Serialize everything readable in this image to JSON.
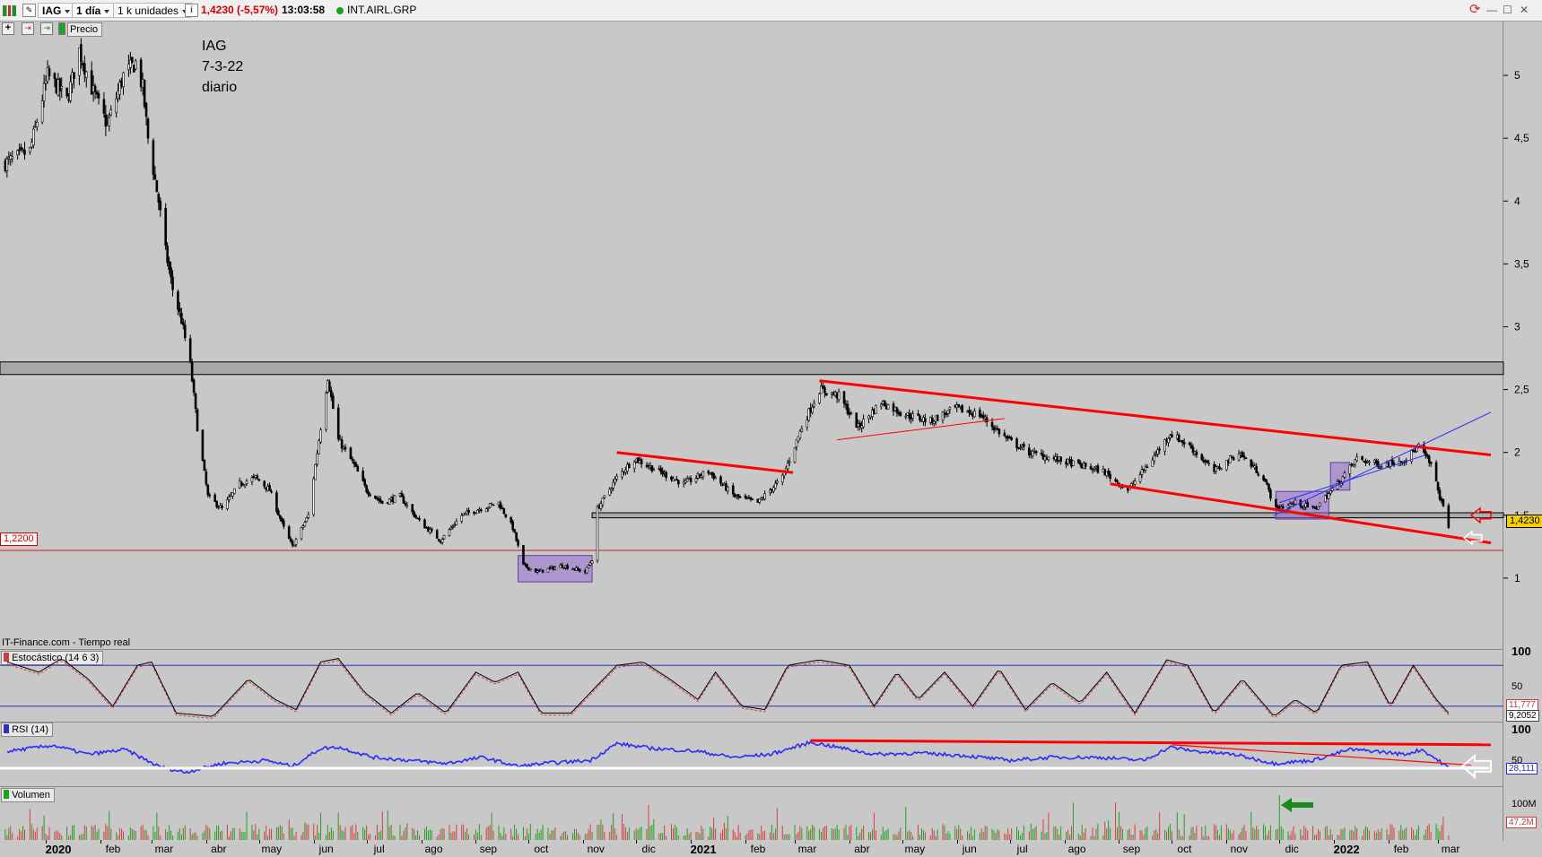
{
  "toolbar": {
    "symbol": "IAG",
    "timeframe": "1 día",
    "units": "1 k unidades",
    "price_change": "1,4230 (-5,57%)",
    "time": "13:03:58",
    "instrument": "INT.AIRL.GRP",
    "price_tab": "Precio",
    "info_icon": "info-icon",
    "refresh_icon": "refresh-icon"
  },
  "window": {
    "minimize": "—",
    "restore": "☐",
    "close": "✕"
  },
  "colors": {
    "background": "#c8c8c8",
    "trendline": "#ff0000",
    "support": "#e02020",
    "stoch": "#000000",
    "rsi": "#2b2bff",
    "volume": "#00a000"
  },
  "chart_data": [
    {
      "type": "candlestick",
      "annotation": [
        "IAG",
        "7-3-22",
        "diario"
      ],
      "source": "IT-Finance.com - Tiempo real",
      "y_ticks": [
        "5",
        "4,5",
        "4",
        "3,5",
        "3",
        "2,5",
        "2",
        "1,5",
        "1"
      ],
      "y_tick_values": [
        5,
        4.5,
        4,
        3.5,
        3,
        2.5,
        2,
        1.5,
        1
      ],
      "ylim": [
        0.55,
        5.4
      ],
      "last_price": "1,4230",
      "support_label": "1,2200",
      "support_value": 1.22,
      "x_ticks": [
        "2020",
        "feb",
        "mar",
        "abr",
        "may",
        "jun",
        "jul",
        "ago",
        "sep",
        "oct",
        "nov",
        "dic",
        "2021",
        "feb",
        "mar",
        "abr",
        "may",
        "jun",
        "jul",
        "ago",
        "sep",
        "oct",
        "nov",
        "dic",
        "2022",
        "feb",
        "mar"
      ],
      "x_tick_bold": [
        true,
        false,
        false,
        false,
        false,
        false,
        false,
        false,
        false,
        false,
        false,
        false,
        true,
        false,
        false,
        false,
        false,
        false,
        false,
        false,
        false,
        false,
        false,
        false,
        true,
        false,
        false
      ],
      "x_range": [
        "2019-12-06",
        "2022-03-31"
      ],
      "series": [
        {
          "points": [
            [
              "2019-12-09",
              4.3
            ],
            [
              "2019-12-23",
              4.4
            ],
            [
              "2020-01-02",
              5.0
            ],
            [
              "2020-01-08",
              4.9
            ],
            [
              "2020-01-13",
              4.8
            ],
            [
              "2020-01-20",
              5.2
            ],
            [
              "2020-01-27",
              4.9
            ],
            [
              "2020-02-05",
              4.6
            ],
            [
              "2020-02-14",
              5.0
            ],
            [
              "2020-02-21",
              5.1
            ],
            [
              "2020-02-25",
              4.9
            ],
            [
              "2020-02-28",
              4.5
            ],
            [
              "2020-03-05",
              4.0
            ],
            [
              "2020-03-09",
              3.6
            ],
            [
              "2020-03-13",
              3.3
            ],
            [
              "2020-03-18",
              3.05
            ],
            [
              "2020-03-23",
              2.7
            ],
            [
              "2020-03-27",
              2.2
            ],
            [
              "2020-04-02",
              1.65
            ],
            [
              "2020-04-10",
              1.55
            ],
            [
              "2020-04-20",
              1.75
            ],
            [
              "2020-04-29",
              1.8
            ],
            [
              "2020-05-07",
              1.7
            ],
            [
              "2020-05-15",
              1.4
            ],
            [
              "2020-05-20",
              1.25
            ],
            [
              "2020-05-29",
              1.5
            ],
            [
              "2020-06-05",
              2.2
            ],
            [
              "2020-06-09",
              2.6
            ],
            [
              "2020-06-15",
              2.1
            ],
            [
              "2020-06-24",
              1.9
            ],
            [
              "2020-07-01",
              1.7
            ],
            [
              "2020-07-10",
              1.6
            ],
            [
              "2020-07-20",
              1.65
            ],
            [
              "2020-07-31",
              1.45
            ],
            [
              "2020-08-12",
              1.3
            ],
            [
              "2020-08-24",
              1.5
            ],
            [
              "2020-09-03",
              1.55
            ],
            [
              "2020-09-14",
              1.6
            ],
            [
              "2020-09-22",
              1.4
            ],
            [
              "2020-09-28",
              1.1
            ],
            [
              "2020-10-06",
              1.05
            ],
            [
              "2020-10-20",
              1.1
            ],
            [
              "2020-11-02",
              1.05
            ],
            [
              "2020-11-06",
              1.15
            ],
            [
              "2020-11-09",
              1.55
            ],
            [
              "2020-11-20",
              1.8
            ],
            [
              "2020-11-30",
              1.95
            ],
            [
              "2020-12-14",
              1.85
            ],
            [
              "2020-12-28",
              1.75
            ],
            [
              "2021-01-11",
              1.85
            ],
            [
              "2021-01-26",
              1.65
            ],
            [
              "2021-02-08",
              1.6
            ],
            [
              "2021-02-22",
              1.8
            ],
            [
              "2021-03-05",
              2.2
            ],
            [
              "2021-03-15",
              2.5
            ],
            [
              "2021-03-26",
              2.45
            ],
            [
              "2021-04-06",
              2.2
            ],
            [
              "2021-04-19",
              2.4
            ],
            [
              "2021-05-03",
              2.3
            ],
            [
              "2021-05-17",
              2.25
            ],
            [
              "2021-05-31",
              2.35
            ],
            [
              "2021-06-14",
              2.3
            ],
            [
              "2021-06-30",
              2.1
            ],
            [
              "2021-07-12",
              2.0
            ],
            [
              "2021-07-26",
              1.95
            ],
            [
              "2021-08-09",
              1.9
            ],
            [
              "2021-08-23",
              1.85
            ],
            [
              "2021-09-06",
              1.7
            ],
            [
              "2021-09-20",
              1.95
            ],
            [
              "2021-09-30",
              2.15
            ],
            [
              "2021-10-11",
              2.05
            ],
            [
              "2021-10-25",
              1.85
            ],
            [
              "2021-11-08",
              2.0
            ],
            [
              "2021-11-22",
              1.8
            ],
            [
              "2021-11-29",
              1.55
            ],
            [
              "2021-12-10",
              1.6
            ],
            [
              "2021-12-21",
              1.55
            ],
            [
              "2022-01-03",
              1.75
            ],
            [
              "2022-01-14",
              1.95
            ],
            [
              "2022-01-28",
              1.9
            ],
            [
              "2022-02-11",
              1.95
            ],
            [
              "2022-02-18",
              2.05
            ],
            [
              "2022-02-25",
              1.9
            ],
            [
              "2022-03-02",
              1.65
            ],
            [
              "2022-03-07",
              1.42
            ]
          ]
        }
      ]
    },
    {
      "type": "line",
      "title": "Estocástico (14 6 3)",
      "y_ticks": [
        "100",
        "50"
      ],
      "y_tick_values": [
        100,
        50
      ],
      "ylim": [
        0,
        100
      ],
      "levels": [
        80,
        20
      ],
      "last_values": [
        "11,777",
        "9,2052"
      ],
      "series": [
        {
          "points": [
            [
              "2019-12-10",
              85
            ],
            [
              "2019-12-28",
              70
            ],
            [
              "2020-01-10",
              90
            ],
            [
              "2020-01-25",
              60
            ],
            [
              "2020-02-08",
              20
            ],
            [
              "2020-02-22",
              80
            ],
            [
              "2020-03-01",
              85
            ],
            [
              "2020-03-15",
              10
            ],
            [
              "2020-04-05",
              5
            ],
            [
              "2020-04-25",
              60
            ],
            [
              "2020-05-10",
              30
            ],
            [
              "2020-05-22",
              15
            ],
            [
              "2020-06-05",
              85
            ],
            [
              "2020-06-15",
              90
            ],
            [
              "2020-06-30",
              40
            ],
            [
              "2020-07-15",
              10
            ],
            [
              "2020-07-30",
              40
            ],
            [
              "2020-08-15",
              10
            ],
            [
              "2020-09-01",
              70
            ],
            [
              "2020-09-12",
              55
            ],
            [
              "2020-09-25",
              70
            ],
            [
              "2020-10-08",
              10
            ],
            [
              "2020-10-25",
              10
            ],
            [
              "2020-11-05",
              40
            ],
            [
              "2020-11-20",
              80
            ],
            [
              "2020-12-05",
              85
            ],
            [
              "2020-12-20",
              60
            ],
            [
              "2021-01-05",
              30
            ],
            [
              "2021-01-15",
              70
            ],
            [
              "2021-01-30",
              20
            ],
            [
              "2021-02-12",
              15
            ],
            [
              "2021-02-25",
              80
            ],
            [
              "2021-03-15",
              88
            ],
            [
              "2021-04-01",
              80
            ],
            [
              "2021-04-15",
              20
            ],
            [
              "2021-04-28",
              70
            ],
            [
              "2021-05-10",
              30
            ],
            [
              "2021-05-25",
              70
            ],
            [
              "2021-06-10",
              20
            ],
            [
              "2021-06-25",
              75
            ],
            [
              "2021-07-10",
              15
            ],
            [
              "2021-07-25",
              55
            ],
            [
              "2021-08-10",
              25
            ],
            [
              "2021-08-25",
              70
            ],
            [
              "2021-09-10",
              10
            ],
            [
              "2021-09-28",
              88
            ],
            [
              "2021-10-10",
              80
            ],
            [
              "2021-10-25",
              10
            ],
            [
              "2021-11-10",
              60
            ],
            [
              "2021-11-28",
              5
            ],
            [
              "2021-12-10",
              30
            ],
            [
              "2021-12-22",
              10
            ],
            [
              "2022-01-05",
              80
            ],
            [
              "2022-01-20",
              85
            ],
            [
              "2022-02-02",
              20
            ],
            [
              "2022-02-15",
              80
            ],
            [
              "2022-02-28",
              30
            ],
            [
              "2022-03-07",
              10
            ]
          ]
        }
      ]
    },
    {
      "type": "line",
      "title": "RSI (14)",
      "y_ticks": [
        "100",
        "50"
      ],
      "y_tick_values": [
        100,
        50
      ],
      "ylim": [
        0,
        100
      ],
      "last_value": "28,111",
      "series": [
        {
          "points": [
            [
              "2019-12-10",
              55
            ],
            [
              "2020-01-05",
              65
            ],
            [
              "2020-01-25",
              50
            ],
            [
              "2020-02-15",
              58
            ],
            [
              "2020-03-05",
              30
            ],
            [
              "2020-03-20",
              20
            ],
            [
              "2020-04-10",
              35
            ],
            [
              "2020-05-05",
              40
            ],
            [
              "2020-05-20",
              30
            ],
            [
              "2020-06-05",
              60
            ],
            [
              "2020-06-15",
              62
            ],
            [
              "2020-07-05",
              45
            ],
            [
              "2020-07-25",
              40
            ],
            [
              "2020-08-15",
              35
            ],
            [
              "2020-09-05",
              45
            ],
            [
              "2020-09-25",
              30
            ],
            [
              "2020-10-10",
              35
            ],
            [
              "2020-11-05",
              40
            ],
            [
              "2020-11-20",
              68
            ],
            [
              "2020-12-10",
              60
            ],
            [
              "2021-01-05",
              55
            ],
            [
              "2021-01-25",
              45
            ],
            [
              "2021-02-15",
              50
            ],
            [
              "2021-03-10",
              70
            ],
            [
              "2021-03-25",
              62
            ],
            [
              "2021-04-15",
              50
            ],
            [
              "2021-05-10",
              52
            ],
            [
              "2021-06-05",
              48
            ],
            [
              "2021-07-01",
              40
            ],
            [
              "2021-07-25",
              45
            ],
            [
              "2021-08-20",
              45
            ],
            [
              "2021-09-15",
              40
            ],
            [
              "2021-09-30",
              62
            ],
            [
              "2021-10-15",
              55
            ],
            [
              "2021-11-05",
              50
            ],
            [
              "2021-11-28",
              35
            ],
            [
              "2021-12-20",
              40
            ],
            [
              "2022-01-10",
              58
            ],
            [
              "2022-01-25",
              55
            ],
            [
              "2022-02-10",
              50
            ],
            [
              "2022-02-20",
              58
            ],
            [
              "2022-03-07",
              28
            ]
          ]
        }
      ]
    },
    {
      "type": "bar",
      "title": "Volumen",
      "y_ticks": [
        "100M"
      ],
      "y_tick_values": [
        100
      ],
      "last_value": "47,2M"
    }
  ]
}
